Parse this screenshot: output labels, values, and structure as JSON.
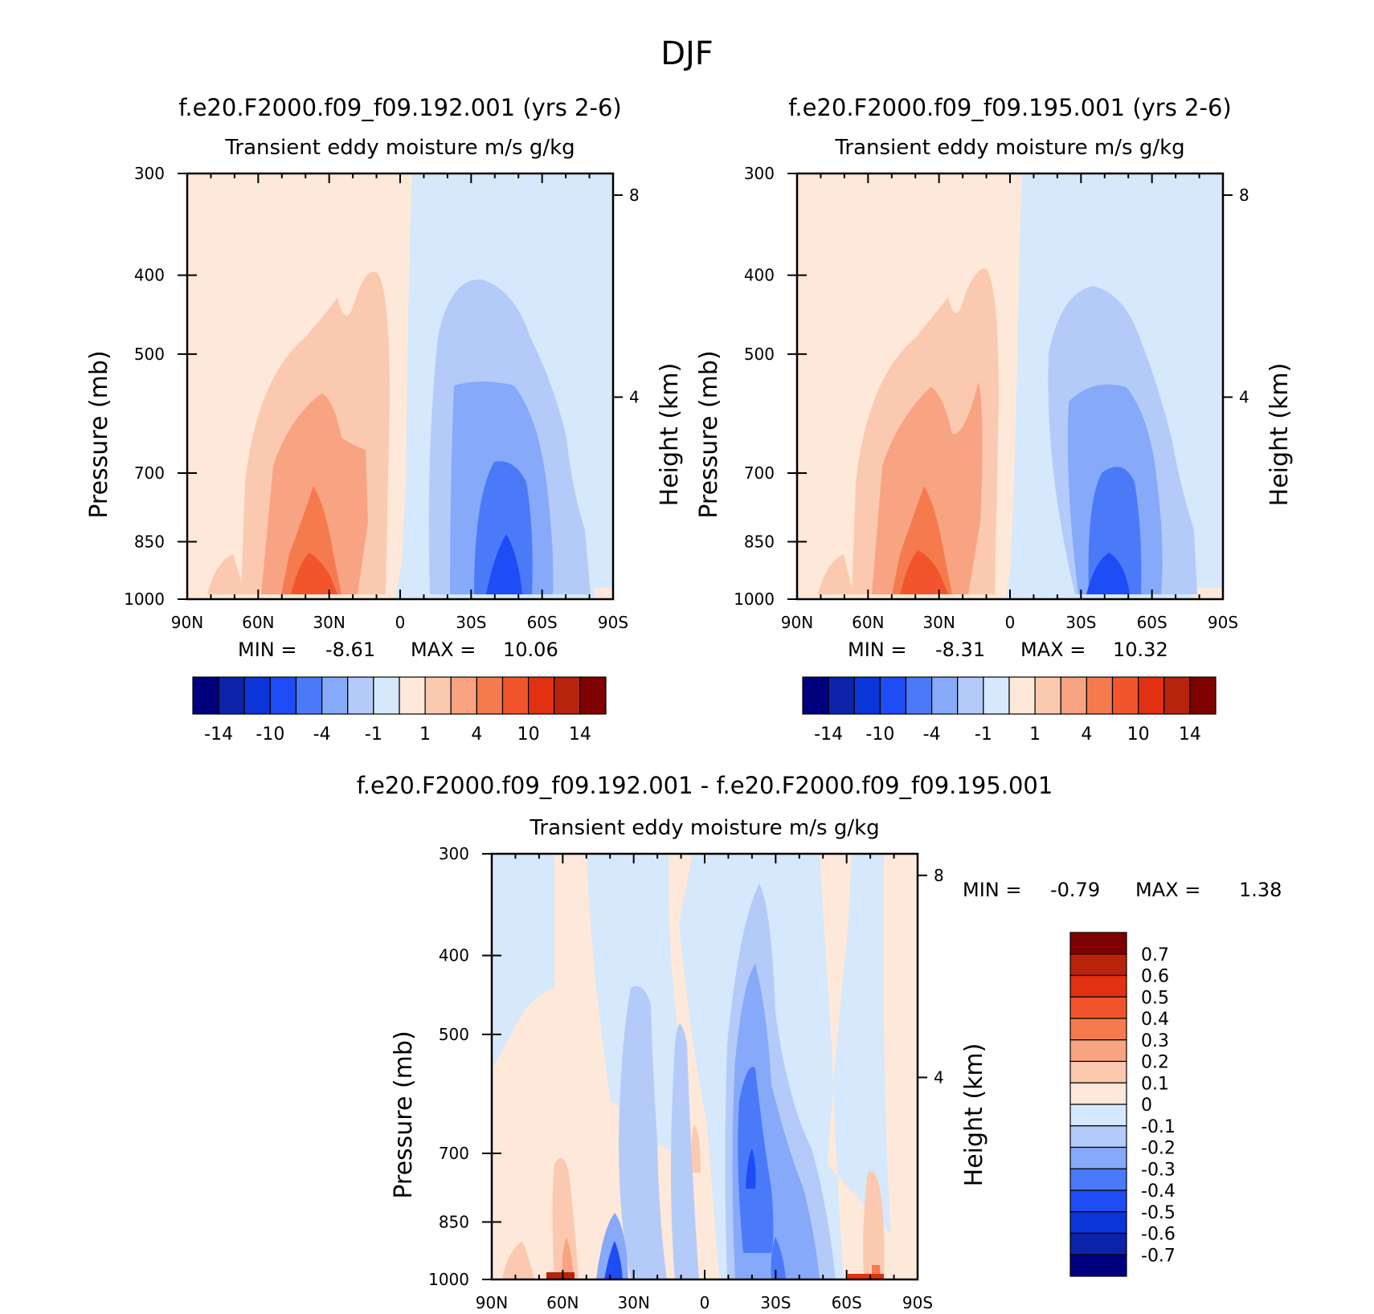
{
  "figure": {
    "title": "DJF",
    "height_axis_label": "Height (km)",
    "pressure_axis_label": "Pressure (mb)"
  },
  "palettes": {
    "absolute": [
      "#00007f",
      "#0a23a8",
      "#0a35d9",
      "#1e4cf5",
      "#4a7af7",
      "#86a9f9",
      "#b4cbf9",
      "#d6e8fb",
      "#fde8d9",
      "#fbc9b0",
      "#f8a382",
      "#f57b4f",
      "#f2552c",
      "#e13110",
      "#b8230c",
      "#7f0000"
    ],
    "difference": [
      "#00007f",
      "#0a23a8",
      "#0a35d9",
      "#1e4cf5",
      "#4a7af7",
      "#86a9f9",
      "#b4cbf9",
      "#d6e8fb",
      "#fde8d9",
      "#fbc9b0",
      "#f8a382",
      "#f57b4f",
      "#f2552c",
      "#e13110",
      "#b8230c",
      "#7f0000"
    ]
  },
  "chart_data": [
    {
      "type": "contour",
      "panel": "top-left",
      "title": "f.e20.F2000.f09_f09.192.001 (yrs 2-6)",
      "subtitle": "Transient eddy moisture m/s g/kg",
      "xlabel": "",
      "ylabel": "Pressure (mb)",
      "ylabel_right": "Height (km)",
      "x_ticks": [
        "90N",
        "60N",
        "30N",
        "0",
        "30S",
        "60S",
        "90S"
      ],
      "y_ticks": [
        300,
        400,
        500,
        700,
        850,
        1000
      ],
      "height_ticks": [
        8,
        4
      ],
      "ylim": [
        1000,
        300
      ],
      "min_label": "MIN =",
      "min_value": "-8.61",
      "max_label": "MAX =",
      "max_value": "10.06",
      "colorbar_labels": [
        "-14",
        "-10",
        "-4",
        "-1",
        "1",
        "4",
        "10",
        "14"
      ],
      "positive_peak": {
        "lat": 38,
        "p": 960,
        "value": 10.06
      },
      "negative_peak": {
        "lat": -45,
        "p": 950,
        "value": -8.61
      }
    },
    {
      "type": "contour",
      "panel": "top-right",
      "title": "f.e20.F2000.f09_f09.195.001 (yrs 2-6)",
      "subtitle": "Transient eddy moisture m/s g/kg",
      "xlabel": "",
      "ylabel": "Pressure (mb)",
      "ylabel_right": "Height (km)",
      "x_ticks": [
        "90N",
        "60N",
        "30N",
        "0",
        "30S",
        "60S",
        "90S"
      ],
      "y_ticks": [
        300,
        400,
        500,
        700,
        850,
        1000
      ],
      "height_ticks": [
        8,
        4
      ],
      "ylim": [
        1000,
        300
      ],
      "min_label": "MIN =",
      "min_value": "-8.31",
      "max_label": "MAX =",
      "max_value": "10.32",
      "colorbar_labels": [
        "-14",
        "-10",
        "-4",
        "-1",
        "1",
        "4",
        "10",
        "14"
      ],
      "positive_peak": {
        "lat": 38,
        "p": 960,
        "value": 10.32
      },
      "negative_peak": {
        "lat": -43,
        "p": 955,
        "value": -8.31
      }
    },
    {
      "type": "contour",
      "panel": "bottom",
      "title": "f.e20.F2000.f09_f09.192.001 - f.e20.F2000.f09_f09.195.001",
      "subtitle": "Transient eddy moisture m/s g/kg",
      "xlabel": "",
      "ylabel": "Pressure (mb)",
      "ylabel_right": "Height (km)",
      "x_ticks": [
        "90N",
        "60N",
        "30N",
        "0",
        "30S",
        "60S",
        "90S"
      ],
      "y_ticks": [
        300,
        400,
        500,
        700,
        850,
        1000
      ],
      "height_ticks": [
        8,
        4
      ],
      "ylim": [
        1000,
        300
      ],
      "min_label": "MIN =",
      "min_value": "-0.79",
      "max_label": "MAX =",
      "max_value": "1.38",
      "colorbar_labels": [
        "0.7",
        "0.6",
        "0.5",
        "0.4",
        "0.3",
        "0.2",
        "0.1",
        "0",
        "-0.1",
        "-0.2",
        "-0.3",
        "-0.4",
        "-0.5",
        "-0.6",
        "-0.7"
      ]
    }
  ]
}
